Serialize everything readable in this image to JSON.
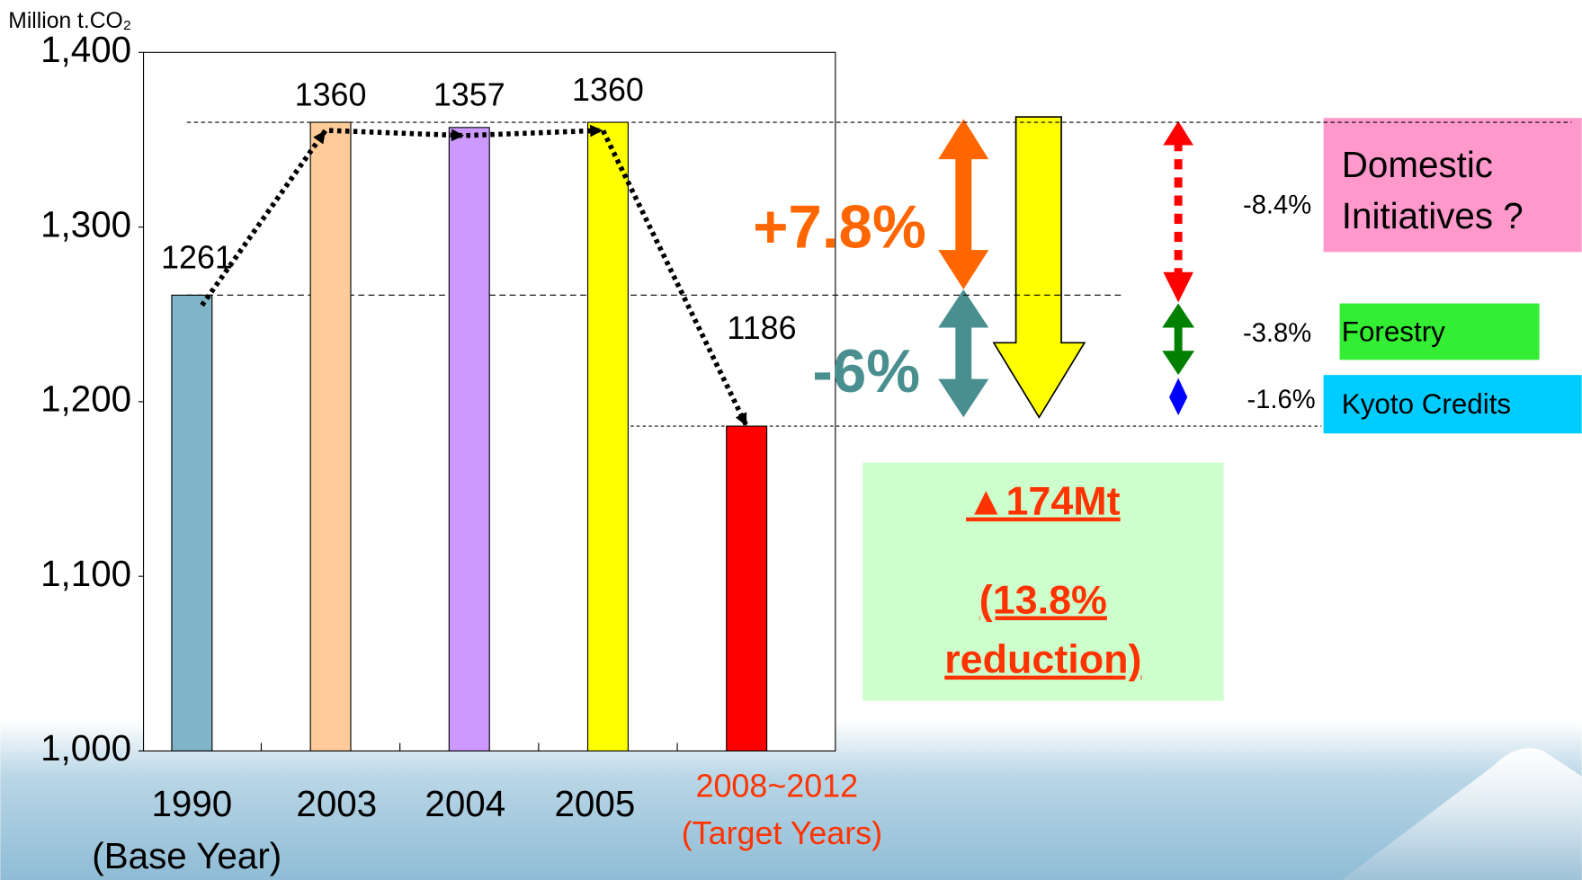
{
  "chart_data": {
    "type": "bar",
    "y_label": "Million t.CO₂",
    "categories": [
      "1990",
      "2003",
      "2004",
      "2005",
      "2008~2012"
    ],
    "category_sublabels": [
      "(Base Year)",
      null,
      null,
      null,
      "(Target Years)"
    ],
    "category_label_colors": [
      "#000000",
      "#000000",
      "#000000",
      "#000000",
      "#ff3300"
    ],
    "values": [
      1261,
      1360,
      1357,
      1360,
      1186
    ],
    "colors": [
      "#80b4c8",
      "#ffcc99",
      "#cc99ff",
      "#ffff00",
      "#ff0000"
    ],
    "ylim": [
      1000,
      1400
    ],
    "yticks": [
      {
        "value": 1000,
        "label": "1,000"
      },
      {
        "value": 1100,
        "label": "1,100"
      },
      {
        "value": 1200,
        "label": "1,200"
      },
      {
        "value": 1300,
        "label": "1,300"
      },
      {
        "value": 1400,
        "label": "1,400"
      }
    ],
    "grid": false,
    "annotations": {
      "increase": "+7.8%",
      "target_cut": "-6%",
      "total_reduction": "▲174Mt",
      "reduction_share_1": "(13.8%",
      "reduction_share_2": "reduction)",
      "domestic_pct": "-8.4%",
      "forestry_pct": "-3.8%",
      "credits_pct": "-1.6%",
      "domestic_1": "Domestic",
      "domestic_2": "Initiatives ?",
      "forestry": "Forestry",
      "credits": "Kyoto Credits"
    }
  }
}
